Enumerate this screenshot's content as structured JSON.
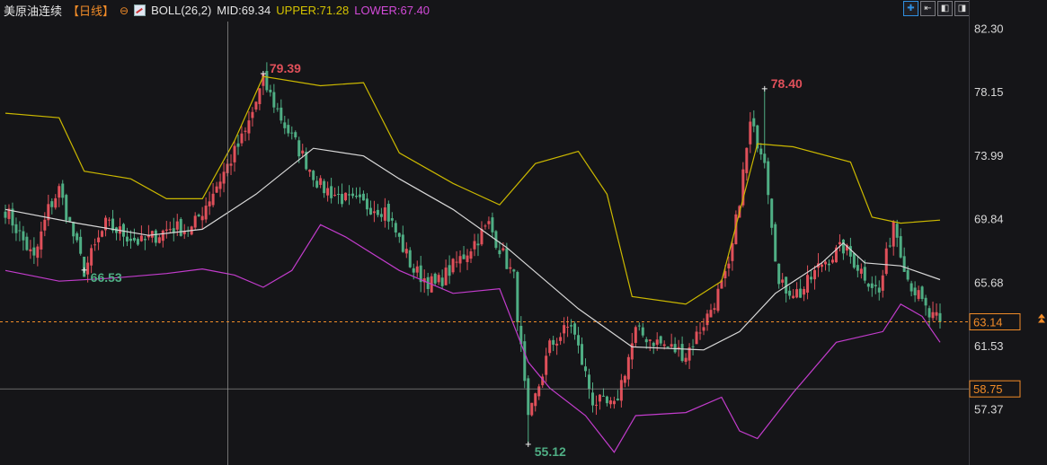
{
  "header": {
    "symbol": "美原油连续",
    "period": "【日线】",
    "indicator": "BOLL(26,2)",
    "mid_label": "MID:69.34",
    "upper_label": "UPPER:71.28",
    "lower_label": "LOWER:67.40"
  },
  "toolbar": [
    {
      "icon": "crosshair-icon",
      "glyph": "✚"
    },
    {
      "icon": "jump-start-icon",
      "glyph": "⇤"
    },
    {
      "icon": "step-back-icon",
      "glyph": "◧"
    },
    {
      "icon": "step-forward-icon",
      "glyph": "◨"
    }
  ],
  "colors": {
    "up": "#e0505a",
    "down": "#4fae84",
    "mid": "#d8d8d8",
    "upper": "#cbb800",
    "lower": "#c23ccc",
    "current": "#f28c28",
    "crosshair": "#9a9a9a"
  },
  "chart_data": {
    "type": "candlestick",
    "ylim": [
      54.0,
      82.8
    ],
    "y_ticks": [
      "82.30",
      "78.15",
      "73.99",
      "69.84",
      "65.68",
      "61.53",
      "57.37"
    ],
    "current_price": "63.14",
    "crosshair_price": "58.75",
    "annotations": [
      {
        "label": "79.39",
        "price": 79.39,
        "bar": 72
      },
      {
        "label": "78.40",
        "price": 78.4,
        "bar": 212
      },
      {
        "label": "66.53",
        "price": 66.53,
        "bar": 22
      },
      {
        "label": "55.12",
        "price": 55.12,
        "bar": 146
      }
    ],
    "anchors": [
      [
        0,
        70.5
      ],
      [
        8,
        67.2
      ],
      [
        12,
        70.5
      ],
      [
        15,
        71.8
      ],
      [
        22,
        66.5
      ],
      [
        28,
        69.5
      ],
      [
        38,
        68.3
      ],
      [
        46,
        69.3
      ],
      [
        52,
        69.2
      ],
      [
        60,
        72.5
      ],
      [
        67,
        75.5
      ],
      [
        72,
        78.9
      ],
      [
        78,
        76.0
      ],
      [
        88,
        72.0
      ],
      [
        96,
        71.0
      ],
      [
        106,
        70.5
      ],
      [
        114,
        66.5
      ],
      [
        120,
        65.5
      ],
      [
        128,
        67.5
      ],
      [
        135,
        69.5
      ],
      [
        142,
        66.0
      ],
      [
        146,
        56.5
      ],
      [
        152,
        61.5
      ],
      [
        158,
        63.0
      ],
      [
        164,
        58.0
      ],
      [
        170,
        57.5
      ],
      [
        176,
        62.5
      ],
      [
        182,
        61.8
      ],
      [
        190,
        61.0
      ],
      [
        196,
        63.5
      ],
      [
        202,
        66.5
      ],
      [
        208,
        76.0
      ],
      [
        212,
        74.0
      ],
      [
        216,
        65.5
      ],
      [
        222,
        65.0
      ],
      [
        228,
        67.0
      ],
      [
        234,
        68.0
      ],
      [
        238,
        66.8
      ],
      [
        244,
        65.0
      ],
      [
        248,
        69.8
      ],
      [
        252,
        66.0
      ],
      [
        258,
        63.5
      ],
      [
        261,
        63.14
      ]
    ],
    "mid_band": [
      [
        0,
        70.5
      ],
      [
        20,
        69.6
      ],
      [
        40,
        68.8
      ],
      [
        55,
        69.2
      ],
      [
        70,
        71.5
      ],
      [
        86,
        74.5
      ],
      [
        100,
        74.0
      ],
      [
        110,
        72.5
      ],
      [
        125,
        70.5
      ],
      [
        140,
        68.0
      ],
      [
        160,
        64.0
      ],
      [
        175,
        61.5
      ],
      [
        195,
        61.3
      ],
      [
        205,
        62.5
      ],
      [
        215,
        65.0
      ],
      [
        228,
        67.0
      ],
      [
        234,
        68.3
      ],
      [
        240,
        67.0
      ],
      [
        250,
        66.8
      ],
      [
        261,
        65.9
      ]
    ],
    "upper_band": [
      [
        0,
        76.8
      ],
      [
        15,
        76.5
      ],
      [
        22,
        73.0
      ],
      [
        35,
        72.5
      ],
      [
        45,
        71.2
      ],
      [
        55,
        71.2
      ],
      [
        64,
        75.0
      ],
      [
        72,
        79.2
      ],
      [
        88,
        78.6
      ],
      [
        100,
        78.8
      ],
      [
        110,
        74.2
      ],
      [
        125,
        72.2
      ],
      [
        138,
        70.8
      ],
      [
        148,
        73.5
      ],
      [
        160,
        74.3
      ],
      [
        168,
        71.5
      ],
      [
        175,
        64.8
      ],
      [
        190,
        64.3
      ],
      [
        200,
        65.8
      ],
      [
        210,
        74.8
      ],
      [
        220,
        74.6
      ],
      [
        236,
        73.6
      ],
      [
        242,
        70.0
      ],
      [
        250,
        69.6
      ],
      [
        261,
        69.8
      ]
    ],
    "lower_band": [
      [
        0,
        66.5
      ],
      [
        15,
        65.8
      ],
      [
        30,
        66.0
      ],
      [
        45,
        66.3
      ],
      [
        55,
        66.6
      ],
      [
        64,
        66.2
      ],
      [
        72,
        65.4
      ],
      [
        80,
        66.5
      ],
      [
        88,
        69.5
      ],
      [
        95,
        68.7
      ],
      [
        110,
        66.5
      ],
      [
        125,
        65.0
      ],
      [
        138,
        65.3
      ],
      [
        146,
        60.5
      ],
      [
        152,
        58.8
      ],
      [
        162,
        57.0
      ],
      [
        170,
        54.6
      ],
      [
        176,
        57.0
      ],
      [
        190,
        57.2
      ],
      [
        200,
        58.2
      ],
      [
        205,
        56.0
      ],
      [
        210,
        55.5
      ],
      [
        220,
        58.5
      ],
      [
        232,
        61.8
      ],
      [
        245,
        62.5
      ],
      [
        250,
        64.3
      ],
      [
        256,
        63.5
      ],
      [
        261,
        61.8
      ]
    ]
  }
}
